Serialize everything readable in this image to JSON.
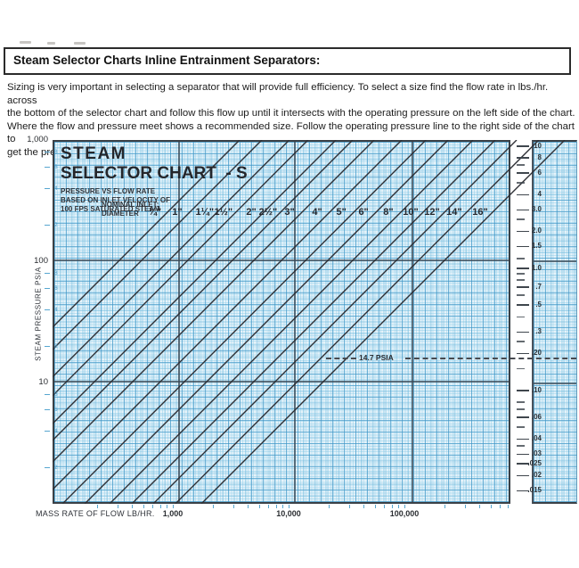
{
  "title_bar": {
    "text": "Steam Selector Charts Inline Entrainment Separators:"
  },
  "intro": {
    "lines": [
      "Sizing is very important in selecting a separator that will provide full efficiency. To select a size find the flow rate in lbs./hr. across",
      "the bottom of the selector chart and follow this flow up until it intersects with the operating pressure on the left side of the chart.",
      "Where the flow and pressure meet shows a recommended size. Follow the operating pressure line to the right side of the chart to",
      "get the pressure drop. Over-sizing should not be considered because efficiency drops off  as velocity decreases."
    ]
  },
  "chart_data": {
    "type": "line",
    "title_line1": "STEAM",
    "title_line2": "SELECTOR CHART  - S",
    "subtitle_lines": [
      "PRESSURE VS FLOW RATE",
      "BASED ON INLET VELOCITY OF",
      "100 FPS SATURATED STEAM"
    ],
    "nominal_inlet": {
      "line1": "NOMINAL INLET:",
      "line2": "DIAMETER"
    },
    "xlabel": "MASS RATE OF FLOW LB/HR.",
    "ylabel": "STEAM PRESSURE PSIA",
    "x_axis": {
      "scale": "log",
      "tick_labels": [
        "1,000",
        "10,000",
        "100,000"
      ],
      "tick_values": [
        1000,
        10000,
        100000
      ],
      "range_lb_hr": [
        100,
        700000
      ],
      "grid": true
    },
    "y_axis": {
      "scale": "log",
      "tick_labels": [
        "1,000",
        "100",
        "10"
      ],
      "tick_values": [
        1000,
        100,
        10
      ],
      "range_psia": [
        1,
        1000
      ],
      "paper_minor_labels": [
        8,
        6,
        4,
        2
      ],
      "grid": true
    },
    "right_axis": {
      "scale": "log",
      "range": [
        0.012,
        10
      ],
      "tick_labels": [
        "10",
        "8",
        "6",
        "4",
        "3.0",
        "2.0",
        "1.5",
        "1.0",
        ".7",
        ".5",
        ".3",
        ".20",
        ".10",
        ".06",
        ".04",
        ".03",
        ".025",
        ".02",
        ".015"
      ],
      "tick_values": [
        10,
        8,
        6,
        4,
        3,
        2,
        1.5,
        1,
        0.7,
        0.5,
        0.3,
        0.2,
        0.1,
        0.06,
        0.04,
        0.03,
        0.025,
        0.02,
        0.015
      ],
      "minor_tick_values": [
        7,
        5,
        2.5,
        1.2,
        0.9,
        0.8,
        0.6,
        0.4,
        0.25,
        0.15,
        0.08,
        0.07,
        0.05,
        0.035
      ]
    },
    "series": [
      {
        "size": "¾\"",
        "flow_lb_hr_at_100_psia": 305
      },
      {
        "size": "1\"",
        "flow_lb_hr_at_100_psia": 475
      },
      {
        "size": "1¼\"",
        "flow_lb_hr_at_100_psia": 820
      },
      {
        "size": "1½\"",
        "flow_lb_hr_at_100_psia": 1190
      },
      {
        "size": "2\"",
        "flow_lb_hr_at_100_psia": 2070
      },
      {
        "size": "2½\"",
        "flow_lb_hr_at_100_psia": 2890
      },
      {
        "size": "3\"",
        "flow_lb_hr_at_100_psia": 4430
      },
      {
        "size": "4\"",
        "flow_lb_hr_at_100_psia": 7670
      },
      {
        "size": "5\"",
        "flow_lb_hr_at_100_psia": 12400
      },
      {
        "size": "6\"",
        "flow_lb_hr_at_100_psia": 19300
      },
      {
        "size": "8\"",
        "flow_lb_hr_at_100_psia": 31600
      },
      {
        "size": "10\"",
        "flow_lb_hr_at_100_psia": 49200
      },
      {
        "size": "12\"",
        "flow_lb_hr_at_100_psia": 75300
      },
      {
        "size": "14\"",
        "flow_lb_hr_at_100_psia": 117000
      },
      {
        "size": "16\"",
        "flow_lb_hr_at_100_psia": 196000
      }
    ],
    "annotation": {
      "text": "14.7 PSIA",
      "pressure_psia": 14.7
    }
  },
  "colors": {
    "grid_blue": "#6fb9dc",
    "paper_bg": "#e7f3fa",
    "diagonal_line": "#2e3036",
    "border_dark": "#3a4046",
    "text_dark": "#1c1c1c"
  }
}
